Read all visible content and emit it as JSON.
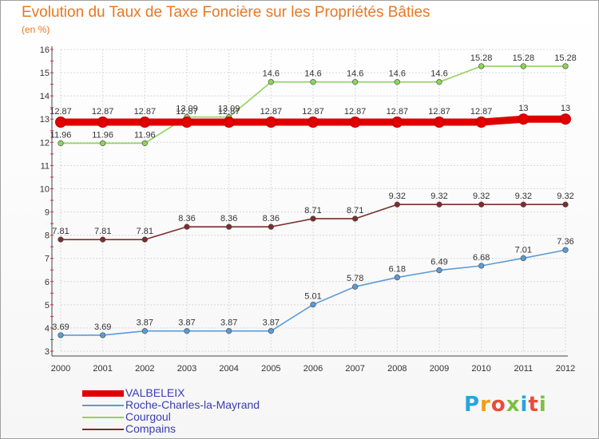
{
  "header": {
    "title": "Evolution du Taux de Taxe Foncière sur les Propriétés Bâties",
    "subtitle": "(en %)"
  },
  "logo": {
    "text": "Proxiti",
    "colors": [
      "#2aa3dd",
      "#f39c12",
      "#e74c3c",
      "#7cc043",
      "#2aa3dd",
      "#e74c3c",
      "#7cc043"
    ]
  },
  "chart_data": {
    "type": "line",
    "title": "Evolution du Taux de Taxe Foncière sur les Propriétés Bâties",
    "ylabel": "(en %)",
    "xlabel": "",
    "ylim": [
      3,
      16
    ],
    "y_ticks": [
      3,
      4,
      5,
      6,
      7,
      8,
      9,
      10,
      11,
      12,
      13,
      14,
      15,
      16
    ],
    "x": [
      "2000",
      "2001",
      "2002",
      "2003",
      "2004",
      "2005",
      "2006",
      "2007",
      "2008",
      "2009",
      "2010",
      "2011",
      "2012"
    ],
    "grid": true,
    "legend_position": "bottom-left",
    "series": [
      {
        "name": "VALBELEIX",
        "color": "#e00000",
        "bold": true,
        "values": [
          12.87,
          12.87,
          12.87,
          12.87,
          12.87,
          12.87,
          12.87,
          12.87,
          12.87,
          12.87,
          12.87,
          13,
          13
        ],
        "labels": [
          "12.87",
          "12.87",
          "12.87",
          "12.87",
          "12.87",
          "12.87",
          "12.87",
          "12.87",
          "12.87",
          "12.87",
          "12.87",
          "13",
          "13"
        ]
      },
      {
        "name": "Roche-Charles-la-Mayrand",
        "color": "#5b9bd5",
        "bold": false,
        "values": [
          3.69,
          3.69,
          3.87,
          3.87,
          3.87,
          3.87,
          5.01,
          5.78,
          6.18,
          6.49,
          6.68,
          7.01,
          7.36
        ],
        "labels": [
          "3.69",
          "3.69",
          "3.87",
          "3.87",
          "3.87",
          "3.87",
          "5.01",
          "5.78",
          "6.18",
          "6.49",
          "6.68",
          "7.01",
          "7.36"
        ]
      },
      {
        "name": "Courgoul",
        "color": "#8fd35f",
        "bold": false,
        "values": [
          11.96,
          11.96,
          11.96,
          13.09,
          13.09,
          14.6,
          14.6,
          14.6,
          14.6,
          14.6,
          15.28,
          15.28,
          15.28
        ],
        "labels": [
          "11.96",
          "11.96",
          "11.96",
          "13.09",
          "13.09",
          "14.6",
          "14.6",
          "14.6",
          "14.6",
          "14.6",
          "15.28",
          "15.28",
          "15.28"
        ]
      },
      {
        "name": "Compains",
        "color": "#7a2e2e",
        "bold": false,
        "values": [
          7.81,
          7.81,
          7.81,
          8.36,
          8.36,
          8.36,
          8.71,
          8.71,
          9.32,
          9.32,
          9.32,
          9.32,
          9.32
        ],
        "labels": [
          "7.81",
          "7.81",
          "7.81",
          "8.36",
          "8.36",
          "8.36",
          "8.71",
          "8.71",
          "9.32",
          "9.32",
          "9.32",
          "9.32",
          "9.32"
        ]
      }
    ]
  }
}
